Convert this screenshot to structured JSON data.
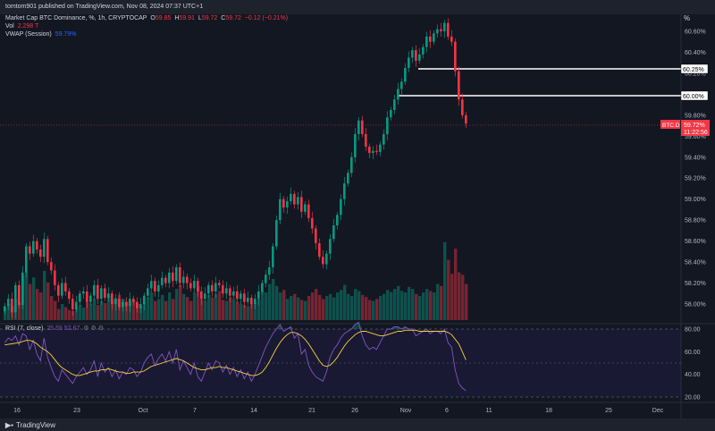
{
  "header": {
    "published": "tomtom901 published on TradingView.com, Nov 08, 2024 07:37 UTC+1"
  },
  "legend": {
    "symbol": "Market Cap BTC Dominance, %, 1h, CRYPTOCAP",
    "open_label": "O",
    "open": "59.85",
    "high_label": "H",
    "high": "59.91",
    "low_label": "L",
    "low": "59.72",
    "close_label": "C",
    "close": "59.72",
    "change": "−0.12 (−0.21%)",
    "vol_label": "Vol",
    "vol": "2.298 T",
    "vwap_label": "VWAP (Session)",
    "vwap": "59.79%",
    "rsi_label": "RSI (7, close)",
    "rsi_values": "25.55 52.67"
  },
  "price_axis": {
    "unit_button": "%",
    "ticks": [
      "60.60%",
      "60.40%",
      "60.20%",
      "60.00%",
      "59.80%",
      "59.60%",
      "59.40%",
      "59.20%",
      "59.00%",
      "58.80%",
      "58.60%",
      "58.40%",
      "58.20%",
      "58.00%"
    ],
    "current_symbol": "BTC.D",
    "current_value": "59.72%",
    "countdown": "11:22:56",
    "level_labels": [
      "60.25%",
      "60.00%"
    ]
  },
  "rsi_axis": {
    "ticks": [
      "80.00",
      "60.00",
      "40.00",
      "20.00"
    ]
  },
  "time_axis": {
    "ticks": [
      "16",
      "23",
      "Oct",
      "7",
      "14",
      "21",
      "26",
      "Nov",
      "6",
      "11",
      "18",
      "25",
      "Dec"
    ]
  },
  "footer": {
    "brand": "TradingView"
  },
  "colors": {
    "up": "#089981",
    "down": "#f23645",
    "rsi": "#7e57c2",
    "rsi_ma": "#f7d23c",
    "bg": "#131722"
  },
  "chart_data": [
    {
      "type": "candlestick",
      "title": "Market Cap BTC Dominance, %, 1h, CRYPTOCAP",
      "ylim": [
        57.9,
        60.72
      ],
      "y_unit": "%",
      "horizontal_levels": [
        60.25,
        60.0
      ],
      "current_price": 59.72,
      "series": [
        {
          "name": "BTC.D",
          "values": [
            57.98,
            58.05,
            57.92,
            58.18,
            57.99,
            58.3,
            58.55,
            58.48,
            58.6,
            58.52,
            58.45,
            58.62,
            58.4,
            58.32,
            58.18,
            58.08,
            58.2,
            58.12,
            58.05,
            57.95,
            58.02,
            58.1,
            58.12,
            58.02,
            58.08,
            58.18,
            58.05,
            58.15,
            58.06,
            58.1,
            58.0,
            58.05,
            57.97,
            58.02,
            57.98,
            58.05,
            58.02,
            57.96,
            58.0,
            58.08,
            58.15,
            58.22,
            58.12,
            58.18,
            58.25,
            58.2,
            58.3,
            58.22,
            58.35,
            58.2,
            58.26,
            58.2,
            58.15,
            58.22,
            58.12,
            58.05,
            58.1,
            58.18,
            58.12,
            58.2,
            58.18,
            58.1,
            58.15,
            58.08,
            58.12,
            58.05,
            58.1,
            58.02,
            58.06,
            58.0,
            58.05,
            58.12,
            58.2,
            58.28,
            58.35,
            58.55,
            58.8,
            59.0,
            58.92,
            58.98,
            59.05,
            58.95,
            59.02,
            58.88,
            58.95,
            58.82,
            58.72,
            58.58,
            58.45,
            58.38,
            58.48,
            58.62,
            58.75,
            58.85,
            59.0,
            59.15,
            59.25,
            59.4,
            59.62,
            59.75,
            59.62,
            59.5,
            59.44,
            59.46,
            59.45,
            59.52,
            59.62,
            59.78,
            59.85,
            59.95,
            60.05,
            60.12,
            60.25,
            60.35,
            60.42,
            60.32,
            60.38,
            60.45,
            60.55,
            60.5,
            60.58,
            60.62,
            60.6,
            60.68,
            60.55,
            60.5,
            60.22,
            59.95,
            59.8,
            59.72
          ]
        }
      ]
    },
    {
      "type": "bar",
      "title": "Vol",
      "series": [
        {
          "name": "Vol",
          "values": [
            0.25,
            0.32,
            0.28,
            0.42,
            0.36,
            0.88,
            0.95,
            0.72,
            0.85,
            0.62,
            0.55,
            0.98,
            0.75,
            0.48,
            0.38,
            0.22,
            0.32,
            0.26,
            0.2,
            0.18,
            0.24,
            0.3,
            0.25,
            0.36,
            0.33,
            0.42,
            0.3,
            0.38,
            0.34,
            0.48,
            0.4,
            0.44,
            0.5,
            0.42,
            0.36,
            0.38,
            0.4,
            0.32,
            0.28,
            0.34,
            0.45,
            0.55,
            0.38,
            0.42,
            0.5,
            0.38,
            0.55,
            0.42,
            0.62,
            0.7,
            0.52,
            0.46,
            0.38,
            0.55,
            0.68,
            0.42,
            0.38,
            0.5,
            0.45,
            0.52,
            0.58,
            0.4,
            0.38,
            0.45,
            0.42,
            0.36,
            0.32,
            0.3,
            0.28,
            0.32,
            0.35,
            0.42,
            0.58,
            0.55,
            0.72,
            0.82,
            0.68,
            0.55,
            0.6,
            0.42,
            0.48,
            0.52,
            0.45,
            0.4,
            0.38,
            0.48,
            0.55,
            0.62,
            0.5,
            0.42,
            0.48,
            0.52,
            0.45,
            0.55,
            0.6,
            0.7,
            0.52,
            0.48,
            0.62,
            0.58,
            0.5,
            0.46,
            0.4,
            0.38,
            0.42,
            0.48,
            0.52,
            0.6,
            0.56,
            0.62,
            0.68,
            0.58,
            0.55,
            0.66,
            0.62,
            0.52,
            0.48,
            0.55,
            0.62,
            0.58,
            0.55,
            0.72,
            0.68,
            1.55,
            1.2,
            0.92,
            1.42,
            0.95,
            0.9,
            0.72
          ]
        }
      ]
    },
    {
      "type": "line",
      "title": "RSI (7, close)",
      "ylim": [
        10,
        90
      ],
      "series": [
        {
          "name": "RSI",
          "values": [
            68,
            72,
            70,
            74,
            66,
            76,
            74,
            62,
            70,
            58,
            52,
            72,
            55,
            46,
            38,
            34,
            44,
            40,
            36,
            32,
            38,
            42,
            46,
            40,
            44,
            52,
            38,
            50,
            42,
            46,
            38,
            44,
            36,
            42,
            40,
            46,
            44,
            38,
            42,
            50,
            55,
            58,
            48,
            54,
            58,
            52,
            60,
            50,
            62,
            44,
            52,
            46,
            40,
            50,
            38,
            34,
            42,
            50,
            44,
            52,
            50,
            42,
            48,
            40,
            46,
            38,
            44,
            36,
            42,
            34,
            40,
            48,
            56,
            64,
            70,
            76,
            80,
            84,
            78,
            80,
            82,
            72,
            76,
            58,
            62,
            48,
            42,
            38,
            36,
            34,
            42,
            55,
            62,
            66,
            72,
            76,
            78,
            80,
            84,
            86,
            74,
            66,
            62,
            64,
            62,
            68,
            74,
            80,
            80,
            82,
            82,
            80,
            82,
            80,
            80,
            74,
            76,
            78,
            80,
            76,
            78,
            78,
            76,
            80,
            68,
            64,
            44,
            32,
            28,
            25.55
          ]
        },
        {
          "name": "MA",
          "values": [
            66,
            66.5,
            67,
            67.5,
            68,
            69,
            70,
            70,
            69,
            67,
            64,
            62,
            60,
            57,
            53,
            49,
            46,
            44,
            42,
            40,
            39,
            39,
            40,
            41,
            42,
            43,
            43,
            44,
            44,
            45,
            44,
            43,
            42,
            42,
            41,
            41,
            42,
            42,
            42,
            43,
            45,
            47,
            48,
            49,
            50,
            51,
            52,
            53,
            54,
            53,
            52,
            50,
            48,
            46,
            45,
            44,
            44,
            45,
            46,
            46,
            47,
            46,
            46,
            45,
            44,
            43,
            42,
            41,
            40,
            39,
            39,
            40,
            42,
            46,
            51,
            57,
            63,
            68,
            72,
            75,
            77,
            77,
            76,
            74,
            71,
            67,
            62,
            57,
            52,
            48,
            47,
            48,
            51,
            55,
            60,
            65,
            69,
            72,
            75,
            77,
            78,
            78,
            77,
            76,
            75,
            74,
            74,
            75,
            76,
            77,
            78,
            78,
            79,
            79,
            79,
            79,
            78,
            78,
            78,
            78,
            78,
            78,
            78,
            78,
            77,
            75,
            71,
            67,
            60,
            52.67
          ]
        }
      ]
    }
  ]
}
